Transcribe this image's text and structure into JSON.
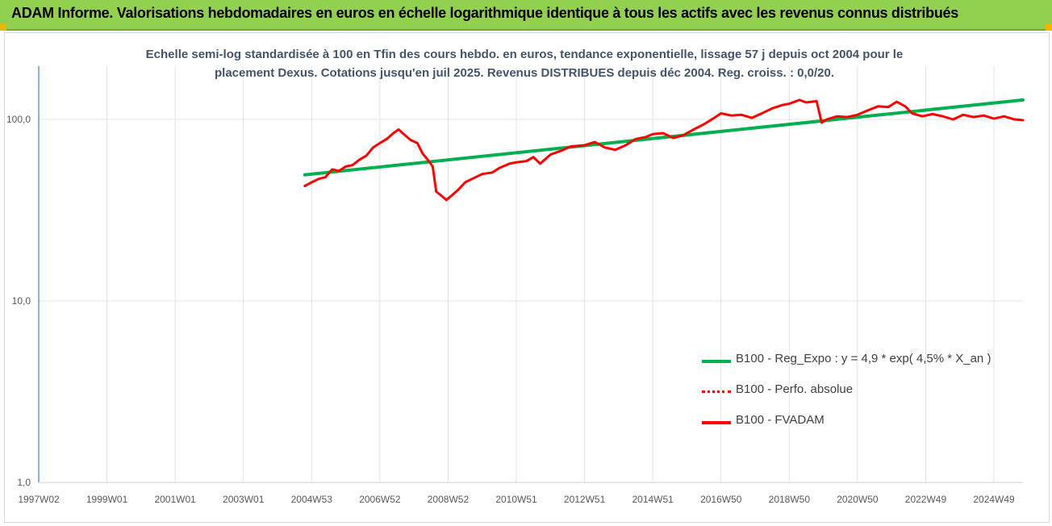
{
  "header": {
    "title": "ADAM Informe. Valorisations hebdomadaires en euros en échelle logarithmique identique à tous les actifs avec les revenus connus distribués",
    "accent_color": "#92D050",
    "corner_color": "#F2B300"
  },
  "chart_data": {
    "type": "line",
    "subtitle_lines": [
      "Echelle semi-log standardisée à 100 en Tfin des cours hebdo. en euros, tendance exponentielle, lissage 57 j depuis oct 2004 pour le",
      "placement Dexus. Cotations jusqu'en juil 2025. Revenus DISTRIBUES depuis déc 2004. Reg. croiss. : 0,0/20."
    ],
    "y_scale": "log",
    "ylim": [
      1,
      200
    ],
    "y_ticks": [
      {
        "value": 1,
        "label": "1,0"
      },
      {
        "value": 10,
        "label": "10,0"
      },
      {
        "value": 100,
        "label": "100,0"
      }
    ],
    "x_range": [
      1997.0,
      2025.85
    ],
    "x_ticks": [
      {
        "pos": 1997.0,
        "label": "1997W02"
      },
      {
        "pos": 1999.0,
        "label": "1999W01"
      },
      {
        "pos": 2001.0,
        "label": "2001W01"
      },
      {
        "pos": 2003.0,
        "label": "2003W01"
      },
      {
        "pos": 2005.0,
        "label": "2004W53"
      },
      {
        "pos": 2007.0,
        "label": "2006W52"
      },
      {
        "pos": 2009.0,
        "label": "2008W52"
      },
      {
        "pos": 2011.0,
        "label": "2010W51"
      },
      {
        "pos": 2013.0,
        "label": "2012W51"
      },
      {
        "pos": 2015.0,
        "label": "2014W51"
      },
      {
        "pos": 2017.0,
        "label": "2016W50"
      },
      {
        "pos": 2019.0,
        "label": "2018W50"
      },
      {
        "pos": 2021.0,
        "label": "2020W50"
      },
      {
        "pos": 2023.0,
        "label": "2022W49"
      },
      {
        "pos": 2025.0,
        "label": "2024W49"
      }
    ],
    "grid": true,
    "legend_position": "bottom-right",
    "series": [
      {
        "name": "B100 - Reg_Expo : y = 4,9 * exp( 4,5% *  X_an )",
        "color": "#00B050",
        "style": "solid",
        "width": 4,
        "points": [
          [
            2004.8,
            49.5
          ],
          [
            2025.85,
            128
          ]
        ]
      },
      {
        "name": "B100 - Perfo. absolue",
        "color": "#FF0000",
        "style": "dotted",
        "width": 2,
        "points": []
      },
      {
        "name": "B100 - FVADAM",
        "color": "#FF0000",
        "style": "solid",
        "width": 3,
        "points": [
          [
            2004.8,
            43
          ],
          [
            2005.0,
            45
          ],
          [
            2005.2,
            47
          ],
          [
            2005.4,
            48
          ],
          [
            2005.6,
            53
          ],
          [
            2005.8,
            52
          ],
          [
            2006.0,
            55
          ],
          [
            2006.2,
            56
          ],
          [
            2006.4,
            60
          ],
          [
            2006.6,
            63
          ],
          [
            2006.8,
            70
          ],
          [
            2007.0,
            74
          ],
          [
            2007.2,
            78
          ],
          [
            2007.4,
            84
          ],
          [
            2007.55,
            88
          ],
          [
            2007.7,
            83
          ],
          [
            2007.9,
            77
          ],
          [
            2008.1,
            74
          ],
          [
            2008.25,
            65
          ],
          [
            2008.4,
            60
          ],
          [
            2008.55,
            55
          ],
          [
            2008.65,
            40
          ],
          [
            2008.8,
            38
          ],
          [
            2008.95,
            36
          ],
          [
            2009.1,
            38
          ],
          [
            2009.3,
            41
          ],
          [
            2009.5,
            45
          ],
          [
            2009.7,
            47
          ],
          [
            2010.0,
            50
          ],
          [
            2010.3,
            51
          ],
          [
            2010.5,
            54
          ],
          [
            2010.8,
            57
          ],
          [
            2011.0,
            58
          ],
          [
            2011.3,
            59
          ],
          [
            2011.5,
            62
          ],
          [
            2011.7,
            57
          ],
          [
            2012.0,
            64
          ],
          [
            2012.3,
            67
          ],
          [
            2012.6,
            71
          ],
          [
            2013.0,
            72
          ],
          [
            2013.3,
            75
          ],
          [
            2013.6,
            70
          ],
          [
            2013.9,
            68
          ],
          [
            2014.2,
            72
          ],
          [
            2014.5,
            78
          ],
          [
            2014.8,
            80
          ],
          [
            2015.0,
            83
          ],
          [
            2015.3,
            84
          ],
          [
            2015.6,
            79
          ],
          [
            2015.9,
            82
          ],
          [
            2016.2,
            88
          ],
          [
            2016.5,
            94
          ],
          [
            2016.8,
            102
          ],
          [
            2017.0,
            108
          ],
          [
            2017.3,
            105
          ],
          [
            2017.6,
            106
          ],
          [
            2017.9,
            102
          ],
          [
            2018.2,
            108
          ],
          [
            2018.5,
            115
          ],
          [
            2018.8,
            120
          ],
          [
            2019.0,
            122
          ],
          [
            2019.3,
            128
          ],
          [
            2019.5,
            124
          ],
          [
            2019.8,
            126
          ],
          [
            2019.95,
            96
          ],
          [
            2020.1,
            100
          ],
          [
            2020.4,
            104
          ],
          [
            2020.7,
            103
          ],
          [
            2021.0,
            106
          ],
          [
            2021.3,
            112
          ],
          [
            2021.6,
            118
          ],
          [
            2021.9,
            117
          ],
          [
            2022.15,
            125
          ],
          [
            2022.4,
            118
          ],
          [
            2022.6,
            108
          ],
          [
            2022.9,
            104
          ],
          [
            2023.2,
            107
          ],
          [
            2023.5,
            104
          ],
          [
            2023.8,
            100
          ],
          [
            2024.1,
            106
          ],
          [
            2024.4,
            103
          ],
          [
            2024.7,
            105
          ],
          [
            2025.0,
            101
          ],
          [
            2025.3,
            104
          ],
          [
            2025.6,
            100
          ],
          [
            2025.85,
            99
          ]
        ]
      }
    ]
  }
}
